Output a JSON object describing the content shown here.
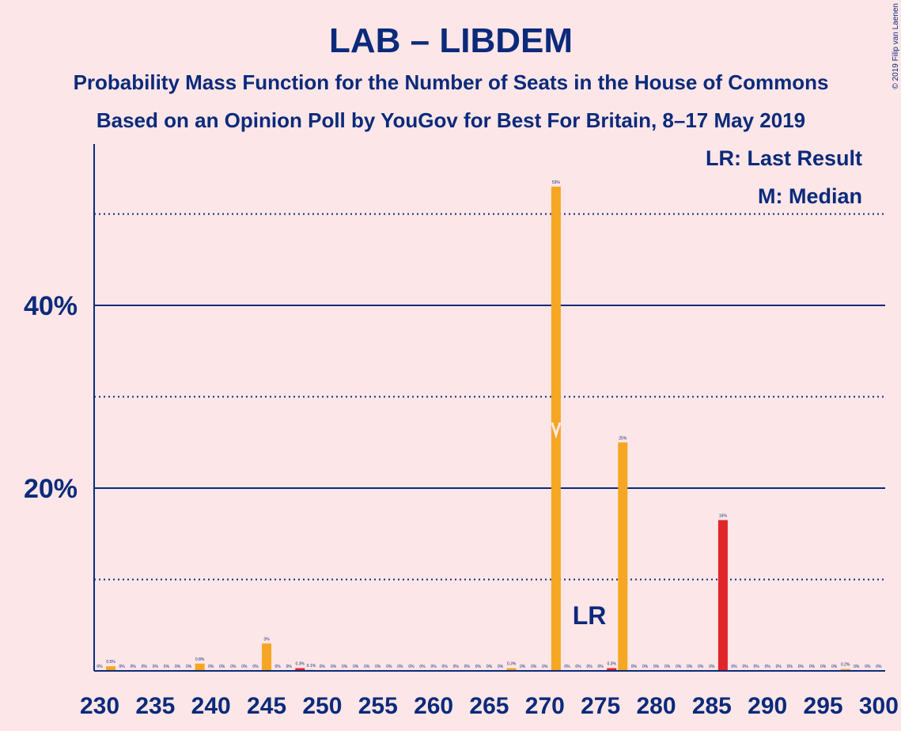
{
  "chart_data": {
    "type": "bar",
    "title": "LAB – LIBDEM",
    "subtitle": "Probability Mass Function for the Number of Seats in the House of Commons",
    "subtitle2": "Based on an Opinion Poll by YouGov for Best For Britain, 8–17 May 2019",
    "copyright": "© 2019 Filip van Laenen",
    "legend": {
      "lr": "LR: Last Result",
      "m": "M: Median",
      "placement": "top-right"
    },
    "xlabel": "",
    "ylabel": "",
    "xlim": [
      230,
      300
    ],
    "ylim": [
      0,
      57.5
    ],
    "x_ticks": [
      "230",
      "235",
      "240",
      "245",
      "250",
      "255",
      "260",
      "265",
      "270",
      "275",
      "280",
      "285",
      "290",
      "295",
      "300"
    ],
    "y_ticks": [
      {
        "value": 20,
        "label": "20%"
      },
      {
        "value": 40,
        "label": "40%"
      }
    ],
    "minor_gridlines": [
      10,
      30,
      50
    ],
    "median_seat": 271,
    "last_result_seat": 274,
    "last_result_label": "LR",
    "colors": {
      "orange": "#f5a623",
      "red": "#e0262a",
      "axis": "#0b2a7a",
      "background": "#fde6e8"
    },
    "bars": [
      {
        "x": 230,
        "value": 0,
        "label": "0%",
        "color": "orange"
      },
      {
        "x": 231,
        "value": 0.5,
        "label": "0.5%",
        "color": "orange"
      },
      {
        "x": 232,
        "value": 0,
        "label": "0%",
        "color": "orange"
      },
      {
        "x": 233,
        "value": 0,
        "label": "0%",
        "color": "orange"
      },
      {
        "x": 234,
        "value": 0,
        "label": "0%",
        "color": "orange"
      },
      {
        "x": 235,
        "value": 0,
        "label": "0%",
        "color": "orange"
      },
      {
        "x": 236,
        "value": 0,
        "label": "0%",
        "color": "orange"
      },
      {
        "x": 237,
        "value": 0,
        "label": "0%",
        "color": "orange"
      },
      {
        "x": 238,
        "value": 0,
        "label": "0%",
        "color": "orange"
      },
      {
        "x": 239,
        "value": 0.8,
        "label": "0.8%",
        "color": "orange"
      },
      {
        "x": 240,
        "value": 0,
        "label": "0%",
        "color": "orange"
      },
      {
        "x": 241,
        "value": 0,
        "label": "0%",
        "color": "orange"
      },
      {
        "x": 242,
        "value": 0,
        "label": "0%",
        "color": "orange"
      },
      {
        "x": 243,
        "value": 0,
        "label": "0%",
        "color": "orange"
      },
      {
        "x": 244,
        "value": 0,
        "label": "0%",
        "color": "orange"
      },
      {
        "x": 245,
        "value": 3,
        "label": "3%",
        "color": "orange"
      },
      {
        "x": 246,
        "value": 0,
        "label": "0%",
        "color": "orange"
      },
      {
        "x": 247,
        "value": 0,
        "label": "0%",
        "color": "orange"
      },
      {
        "x": 248,
        "value": 0.3,
        "label": "0.3%",
        "color": "red"
      },
      {
        "x": 249,
        "value": 0.1,
        "label": "0.1%",
        "color": "orange"
      },
      {
        "x": 250,
        "value": 0,
        "label": "0%",
        "color": "orange"
      },
      {
        "x": 251,
        "value": 0,
        "label": "0%",
        "color": "orange"
      },
      {
        "x": 252,
        "value": 0,
        "label": "0%",
        "color": "orange"
      },
      {
        "x": 253,
        "value": 0,
        "label": "0%",
        "color": "orange"
      },
      {
        "x": 254,
        "value": 0,
        "label": "0%",
        "color": "orange"
      },
      {
        "x": 255,
        "value": 0,
        "label": "0%",
        "color": "orange"
      },
      {
        "x": 256,
        "value": 0,
        "label": "0%",
        "color": "orange"
      },
      {
        "x": 257,
        "value": 0,
        "label": "0%",
        "color": "orange"
      },
      {
        "x": 258,
        "value": 0,
        "label": "0%",
        "color": "orange"
      },
      {
        "x": 259,
        "value": 0,
        "label": "0%",
        "color": "orange"
      },
      {
        "x": 260,
        "value": 0,
        "label": "0%",
        "color": "orange"
      },
      {
        "x": 261,
        "value": 0,
        "label": "0%",
        "color": "orange"
      },
      {
        "x": 262,
        "value": 0,
        "label": "0%",
        "color": "orange"
      },
      {
        "x": 263,
        "value": 0,
        "label": "0%",
        "color": "orange"
      },
      {
        "x": 264,
        "value": 0,
        "label": "0%",
        "color": "orange"
      },
      {
        "x": 265,
        "value": 0,
        "label": "0%",
        "color": "orange"
      },
      {
        "x": 266,
        "value": 0,
        "label": "0%",
        "color": "orange"
      },
      {
        "x": 267,
        "value": 0.3,
        "label": "0.3%",
        "color": "orange"
      },
      {
        "x": 268,
        "value": 0,
        "label": "0%",
        "color": "orange"
      },
      {
        "x": 269,
        "value": 0,
        "label": "0%",
        "color": "orange"
      },
      {
        "x": 270,
        "value": 0,
        "label": "0%",
        "color": "orange"
      },
      {
        "x": 271,
        "value": 53,
        "label": "53%",
        "color": "orange"
      },
      {
        "x": 272,
        "value": 0,
        "label": "0%",
        "color": "orange"
      },
      {
        "x": 273,
        "value": 0,
        "label": "0%",
        "color": "orange"
      },
      {
        "x": 274,
        "value": 0,
        "label": "0%",
        "color": "orange"
      },
      {
        "x": 275,
        "value": 0,
        "label": "0%",
        "color": "orange"
      },
      {
        "x": 276,
        "value": 0.3,
        "label": "0.3%",
        "color": "red"
      },
      {
        "x": 277,
        "value": 25,
        "label": "25%",
        "color": "orange"
      },
      {
        "x": 278,
        "value": 0,
        "label": "0%",
        "color": "orange"
      },
      {
        "x": 279,
        "value": 0,
        "label": "0%",
        "color": "orange"
      },
      {
        "x": 280,
        "value": 0,
        "label": "0%",
        "color": "orange"
      },
      {
        "x": 281,
        "value": 0,
        "label": "0%",
        "color": "orange"
      },
      {
        "x": 282,
        "value": 0,
        "label": "0%",
        "color": "orange"
      },
      {
        "x": 283,
        "value": 0,
        "label": "0%",
        "color": "orange"
      },
      {
        "x": 284,
        "value": 0,
        "label": "0%",
        "color": "orange"
      },
      {
        "x": 285,
        "value": 0,
        "label": "0%",
        "color": "orange"
      },
      {
        "x": 286,
        "value": 16.5,
        "label": "16%",
        "color": "red"
      },
      {
        "x": 287,
        "value": 0,
        "label": "0%",
        "color": "orange"
      },
      {
        "x": 288,
        "value": 0,
        "label": "0%",
        "color": "orange"
      },
      {
        "x": 289,
        "value": 0,
        "label": "0%",
        "color": "orange"
      },
      {
        "x": 290,
        "value": 0,
        "label": "0%",
        "color": "orange"
      },
      {
        "x": 291,
        "value": 0,
        "label": "0%",
        "color": "orange"
      },
      {
        "x": 292,
        "value": 0,
        "label": "0%",
        "color": "orange"
      },
      {
        "x": 293,
        "value": 0,
        "label": "0%",
        "color": "orange"
      },
      {
        "x": 294,
        "value": 0,
        "label": "0%",
        "color": "orange"
      },
      {
        "x": 295,
        "value": 0,
        "label": "0%",
        "color": "orange"
      },
      {
        "x": 296,
        "value": 0,
        "label": "0%",
        "color": "orange"
      },
      {
        "x": 297,
        "value": 0.2,
        "label": "0.2%",
        "color": "orange"
      },
      {
        "x": 298,
        "value": 0,
        "label": "0%",
        "color": "orange"
      },
      {
        "x": 299,
        "value": 0,
        "label": "0%",
        "color": "orange"
      },
      {
        "x": 300,
        "value": 0,
        "label": "0%",
        "color": "orange"
      }
    ]
  }
}
